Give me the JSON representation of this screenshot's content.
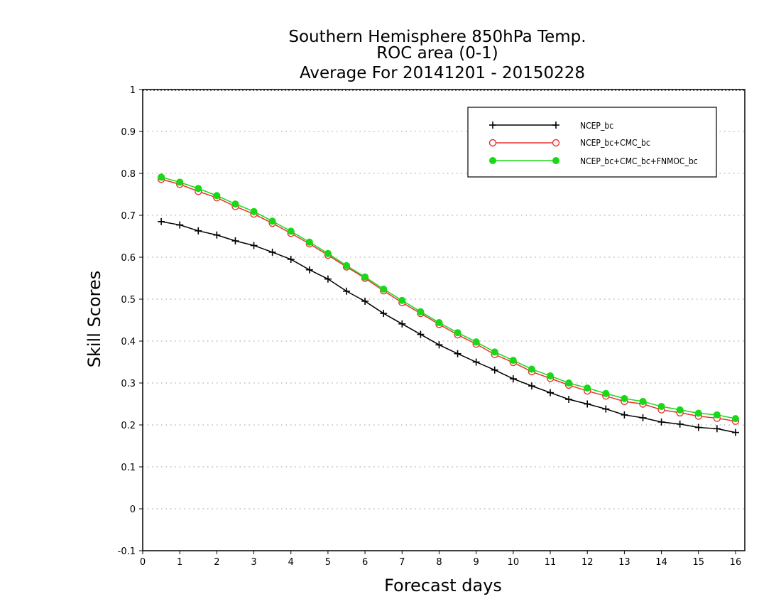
{
  "colors": {
    "background": "#ffffff",
    "axes": "#000000",
    "grid": "#9a9a9a",
    "NCEP_bc": "#000000",
    "NCEP_bc_CMC_bc": "#e8322e",
    "NCEP_bc_CMC_bc_FNMOC_bc": "#18d818"
  },
  "chart_data": {
    "type": "line",
    "title": [
      "Southern Hemisphere 850hPa Temp.",
      "ROC area (0-1)",
      "Average For 20141201 - 20150228"
    ],
    "xlabel": "Forecast days",
    "ylabel": "Skill Scores",
    "xlim": [
      0,
      16.25
    ],
    "ylim": [
      -0.1,
      1
    ],
    "x_ticks": [
      0,
      1,
      2,
      3,
      4,
      5,
      6,
      7,
      8,
      9,
      10,
      11,
      12,
      13,
      14,
      15,
      16
    ],
    "x_tick_labels": [
      "0",
      "1",
      "2",
      "3",
      "4",
      "5",
      "6",
      "7",
      "8",
      "9",
      "10",
      "11",
      "12",
      "13",
      "14",
      "15",
      "16"
    ],
    "y_ticks": [
      -0.1,
      0,
      0.1,
      0.2,
      0.3,
      0.4,
      0.5,
      0.6,
      0.7,
      0.8,
      0.9,
      1
    ],
    "y_tick_labels": [
      "-0.1",
      "0",
      "0.1",
      "0.2",
      "0.3",
      "0.4",
      "0.5",
      "0.6",
      "0.7",
      "0.8",
      "0.9",
      "1"
    ],
    "grid": "horizontal dotted",
    "legend_position": "top-right",
    "x": [
      0.5,
      1,
      1.5,
      2,
      2.5,
      3,
      3.5,
      4,
      4.5,
      5,
      5.5,
      6,
      6.5,
      7,
      7.5,
      8,
      8.5,
      9,
      9.5,
      10,
      10.5,
      11,
      11.5,
      12,
      12.5,
      13,
      13.5,
      14,
      14.5,
      15,
      15.5,
      16
    ],
    "series": [
      {
        "name": "NCEP_bc",
        "marker": "plus",
        "values": [
          0.685,
          0.677,
          0.663,
          0.653,
          0.639,
          0.628,
          0.612,
          0.595,
          0.57,
          0.548,
          0.519,
          0.495,
          0.466,
          0.441,
          0.416,
          0.391,
          0.37,
          0.35,
          0.331,
          0.31,
          0.293,
          0.277,
          0.261,
          0.25,
          0.238,
          0.224,
          0.217,
          0.207,
          0.202,
          0.194,
          0.191,
          0.182
        ]
      },
      {
        "name": "NCEP_bc+CMC_bc",
        "marker": "open-circle",
        "values": [
          0.786,
          0.774,
          0.757,
          0.742,
          0.721,
          0.703,
          0.681,
          0.657,
          0.632,
          0.605,
          0.577,
          0.55,
          0.52,
          0.492,
          0.466,
          0.44,
          0.415,
          0.393,
          0.368,
          0.349,
          0.327,
          0.311,
          0.295,
          0.281,
          0.269,
          0.256,
          0.25,
          0.236,
          0.229,
          0.221,
          0.216,
          0.209
        ]
      },
      {
        "name": "NCEP_bc+CMC_bc+FNMOC_bc",
        "marker": "filled-circle",
        "values": [
          0.791,
          0.779,
          0.764,
          0.747,
          0.727,
          0.709,
          0.686,
          0.662,
          0.636,
          0.609,
          0.58,
          0.553,
          0.524,
          0.497,
          0.47,
          0.444,
          0.42,
          0.398,
          0.374,
          0.354,
          0.333,
          0.317,
          0.3,
          0.288,
          0.275,
          0.263,
          0.256,
          0.244,
          0.236,
          0.228,
          0.224,
          0.215
        ]
      }
    ]
  }
}
